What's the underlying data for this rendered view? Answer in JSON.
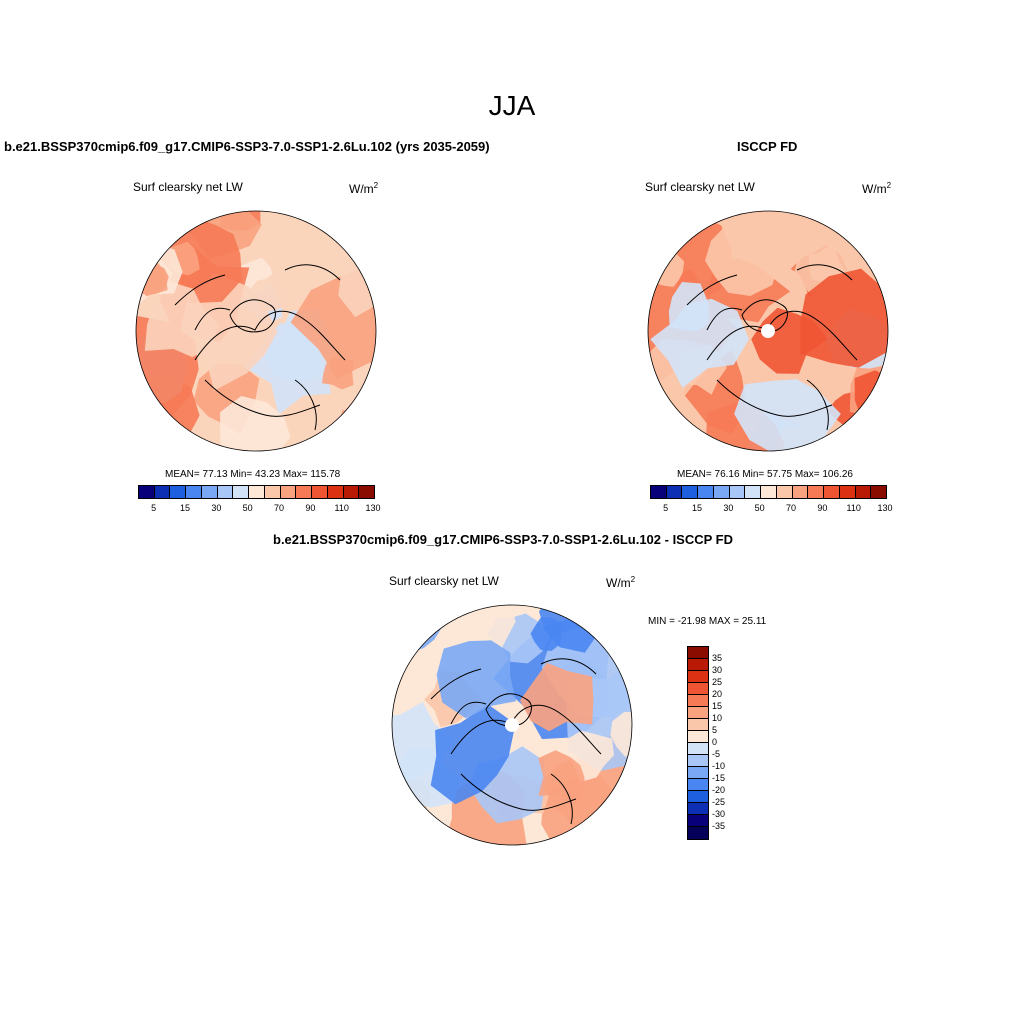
{
  "title": "JJA",
  "units_base": "W/m",
  "units_exp": "2",
  "panels": {
    "model": {
      "title": "b.e21.BSSP370cmip6.f09_g17.CMIP6-SSP3-7.0-SSP1-2.6Lu.102 (yrs 2035-2059)",
      "variable": "Surf clearsky net LW",
      "stats": "MEAN=  77.13  Min=  43.23  Max= 115.78"
    },
    "obs": {
      "title": "ISCCP FD",
      "variable": "Surf clearsky net LW",
      "stats": "MEAN=  76.16  Min=  57.75  Max= 106.26"
    },
    "diff": {
      "title": "b.e21.BSSP370cmip6.f09_g17.CMIP6-SSP3-7.0-SSP1-2.6Lu.102 - ISCCP FD",
      "variable": "Surf clearsky net LW",
      "minmax": "MIN = -21.98 MAX =  25.11"
    }
  },
  "abs_colorbar": {
    "ticks": [
      "5",
      "15",
      "30",
      "50",
      "70",
      "90",
      "110",
      "130"
    ],
    "colors": [
      "#08007a",
      "#0d2fb4",
      "#1e5fe0",
      "#4a86f2",
      "#7aa8f5",
      "#a8c6f7",
      "#d2e3f8",
      "#fde8d8",
      "#fbc7aa",
      "#f9a27f",
      "#f67a55",
      "#ef5533",
      "#dc3112",
      "#b81a06",
      "#8a0c00"
    ]
  },
  "diff_colorbar": {
    "ticks": [
      "35",
      "30",
      "25",
      "20",
      "15",
      "10",
      "5",
      "0",
      "-5",
      "-10",
      "-15",
      "-20",
      "-25",
      "-30",
      "-35"
    ],
    "colors": [
      "#8a0c00",
      "#b81a06",
      "#dc3112",
      "#ef5533",
      "#f67a55",
      "#f9a27f",
      "#fbc7aa",
      "#fde8d8",
      "#d2e3f8",
      "#a8c6f7",
      "#7aa8f5",
      "#4a86f2",
      "#1e5fe0",
      "#0d2fb4",
      "#08007a",
      "#050058"
    ]
  },
  "map_colors": {
    "model": [
      "#fbd4bc",
      "#f9a27f",
      "#f67a55",
      "#fde8d8",
      "#d2e3f8"
    ],
    "obs": [
      "#fbc7aa",
      "#f9a27f",
      "#f67a55",
      "#ef5533",
      "#d2e3f8"
    ],
    "diff": [
      "#fde8d8",
      "#fbc7aa",
      "#f9a27f",
      "#a8c6f7",
      "#7aa8f5",
      "#4a86f2",
      "#d2e3f8"
    ]
  }
}
